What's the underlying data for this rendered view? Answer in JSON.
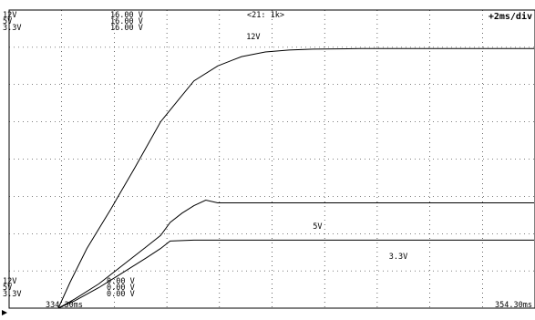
{
  "chart_data": {
    "type": "line",
    "x_unit": "ms",
    "xlim": [
      334.3,
      354.3
    ],
    "ylim": [
      0,
      16
    ],
    "ylabel": "V",
    "grid": true,
    "time_div": "+2ms/div",
    "cursor_label": "<21: 1k>",
    "x_start_label": "334.30ms",
    "x_end_label": "354.30ms",
    "top_scale": {
      "names": [
        "12V",
        "5V",
        "3.3V"
      ],
      "values": [
        "16.00 V",
        "16.00 V",
        "16.00 V"
      ]
    },
    "bottom_scale": {
      "names": [
        "12V",
        "5V",
        "3.3V"
      ],
      "values": [
        "0.00 V",
        "0.00 V",
        "0.00 V"
      ]
    },
    "series": [
      {
        "name": "12V",
        "label": "12V",
        "x": [
          334.3,
          334.8,
          335.5,
          336.5,
          337.5,
          338.6,
          339.3,
          340.0,
          341.0,
          342.0,
          343.0,
          344.0,
          345.0,
          347.0,
          350.0,
          354.3
        ],
        "y": [
          0.0,
          1.4,
          3.2,
          5.3,
          7.5,
          10.0,
          11.1,
          12.2,
          13.0,
          13.5,
          13.75,
          13.85,
          13.9,
          13.93,
          13.93,
          13.93
        ]
      },
      {
        "name": "5V",
        "label": "5V",
        "x": [
          334.3,
          335.0,
          336.0,
          337.0,
          338.0,
          338.6,
          339.0,
          339.5,
          340.0,
          340.5,
          341.0,
          343.0,
          346.0,
          350.0,
          354.3
        ],
        "y": [
          0.0,
          0.5,
          1.3,
          2.3,
          3.3,
          3.9,
          4.6,
          5.1,
          5.5,
          5.8,
          5.65,
          5.65,
          5.65,
          5.65,
          5.65
        ]
      },
      {
        "name": "3.3V",
        "label": "3.3V",
        "x": [
          334.3,
          335.0,
          336.0,
          337.0,
          338.0,
          338.6,
          339.0,
          340.0,
          342.0,
          346.0,
          350.0,
          354.3
        ],
        "y": [
          0.0,
          0.4,
          1.1,
          1.9,
          2.7,
          3.2,
          3.6,
          3.65,
          3.65,
          3.65,
          3.65,
          3.65
        ]
      }
    ]
  }
}
